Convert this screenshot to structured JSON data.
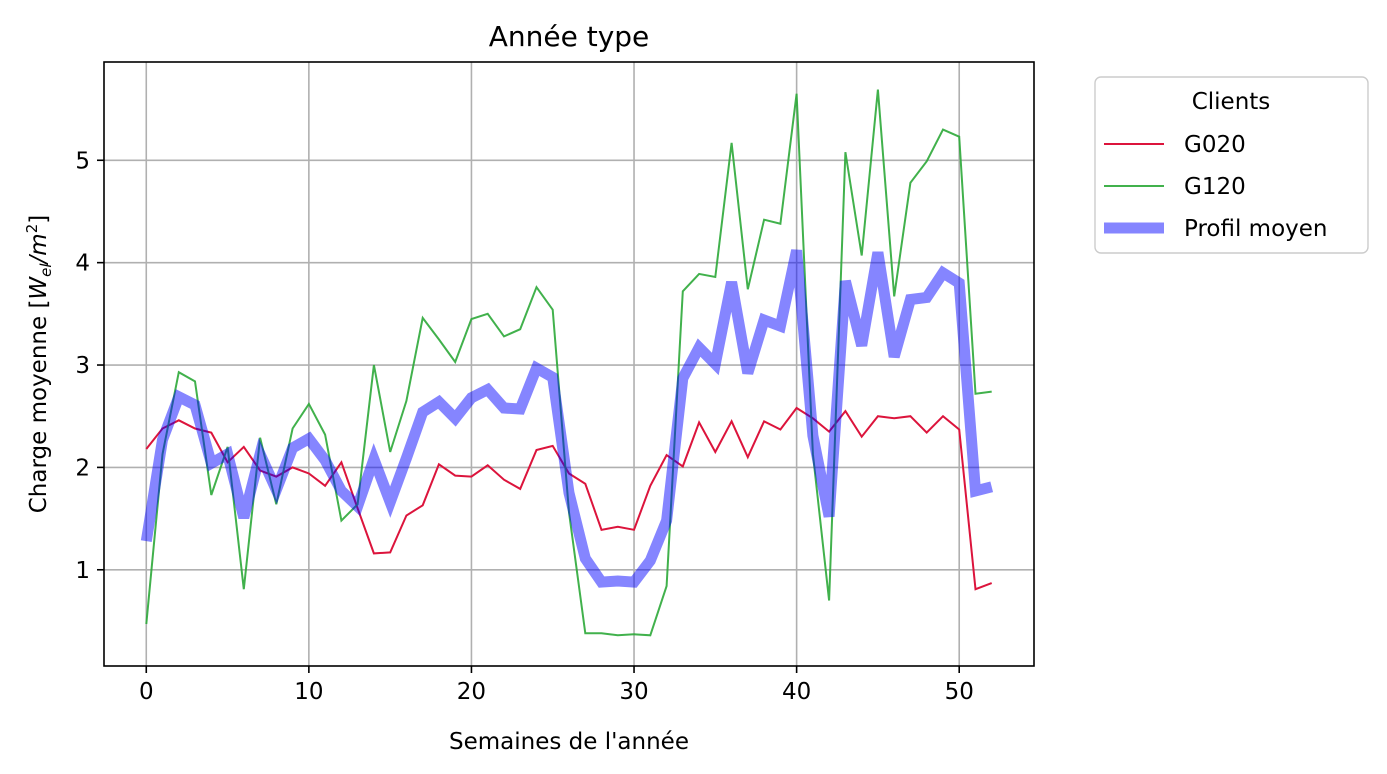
{
  "chart_data": {
    "type": "line",
    "title": "Année type",
    "xlabel": "Semaines de l'année",
    "ylabel_main": "Charge moyenne [",
    "ylabel_var": "W",
    "ylabel_sub": "el",
    "ylabel_slash": "/",
    "ylabel_m": "m",
    "ylabel_sup": "2",
    "ylabel_end": "]",
    "xlim": [
      -2.6,
      54.6
    ],
    "ylim": [
      0.06,
      5.96
    ],
    "xticks": [
      0,
      10,
      20,
      30,
      40,
      50
    ],
    "yticks": [
      1,
      2,
      3,
      4,
      5
    ],
    "grid": true,
    "legend_title": "Clients",
    "legend_position": "outside-top-right",
    "series": [
      {
        "name": "G020",
        "color": "#dc143c",
        "width": 2,
        "opacity": 1,
        "x": [
          0,
          1,
          2,
          3,
          4,
          5,
          6,
          7,
          8,
          9,
          10,
          11,
          12,
          13,
          14,
          15,
          16,
          17,
          18,
          19,
          20,
          21,
          22,
          23,
          24,
          25,
          26,
          27,
          28,
          29,
          30,
          31,
          32,
          33,
          34,
          35,
          36,
          37,
          38,
          39,
          40,
          41,
          42,
          43,
          44,
          45,
          46,
          47,
          48,
          49,
          50,
          51,
          52
        ],
        "y": [
          2.18,
          2.38,
          2.46,
          2.38,
          2.34,
          2.05,
          2.2,
          1.97,
          1.91,
          2.0,
          1.94,
          1.82,
          2.05,
          1.6,
          1.16,
          1.17,
          1.53,
          1.63,
          2.03,
          1.92,
          1.91,
          2.02,
          1.88,
          1.79,
          2.17,
          2.21,
          1.94,
          1.84,
          1.39,
          1.42,
          1.39,
          1.82,
          2.12,
          2.01,
          2.44,
          2.15,
          2.45,
          2.1,
          2.45,
          2.37,
          2.58,
          2.48,
          2.35,
          2.55,
          2.3,
          2.5,
          2.48,
          2.5,
          2.34,
          2.5,
          2.37,
          0.81,
          0.87
        ]
      },
      {
        "name": "G120",
        "color": "#2ca839",
        "width": 2,
        "opacity": 0.9,
        "x": [
          0,
          1,
          2,
          3,
          4,
          5,
          6,
          7,
          8,
          9,
          10,
          11,
          12,
          13,
          14,
          15,
          16,
          17,
          18,
          19,
          20,
          21,
          22,
          23,
          24,
          25,
          26,
          27,
          28,
          29,
          30,
          31,
          32,
          33,
          34,
          35,
          36,
          37,
          38,
          39,
          40,
          41,
          42,
          43,
          44,
          45,
          46,
          47,
          48,
          49,
          50,
          51,
          52
        ],
        "y": [
          0.47,
          2.13,
          2.93,
          2.84,
          1.73,
          2.2,
          0.81,
          2.29,
          1.64,
          2.38,
          2.62,
          2.32,
          1.48,
          1.64,
          3.0,
          2.15,
          2.65,
          3.46,
          3.25,
          3.03,
          3.45,
          3.5,
          3.28,
          3.35,
          3.76,
          3.54,
          1.56,
          0.38,
          0.38,
          0.36,
          0.37,
          0.36,
          0.84,
          3.72,
          3.89,
          3.86,
          5.17,
          3.74,
          4.42,
          4.38,
          5.65,
          2.13,
          0.7,
          5.08,
          4.07,
          5.69,
          3.67,
          4.78,
          4.99,
          5.3,
          5.23,
          2.72,
          2.74
        ]
      },
      {
        "name": "Profil moyen",
        "color": "#0000ff",
        "width": 11,
        "opacity": 0.48,
        "x": [
          0,
          1,
          2,
          3,
          4,
          5,
          6,
          7,
          8,
          9,
          10,
          11,
          12,
          13,
          14,
          15,
          16,
          17,
          18,
          19,
          20,
          21,
          22,
          23,
          24,
          25,
          26,
          27,
          28,
          29,
          30,
          31,
          32,
          33,
          34,
          35,
          36,
          37,
          38,
          39,
          40,
          41,
          42,
          43,
          44,
          45,
          46,
          47,
          48,
          49,
          50,
          51,
          52
        ],
        "y": [
          1.28,
          2.27,
          2.69,
          2.61,
          2.04,
          2.13,
          1.51,
          2.13,
          1.78,
          2.19,
          2.28,
          2.07,
          1.77,
          1.62,
          2.08,
          1.66,
          2.09,
          2.54,
          2.64,
          2.48,
          2.68,
          2.76,
          2.58,
          2.57,
          2.97,
          2.88,
          1.75,
          1.11,
          0.88,
          0.89,
          0.88,
          1.09,
          1.48,
          2.87,
          3.17,
          3.01,
          3.81,
          2.92,
          3.44,
          3.38,
          4.12,
          2.31,
          1.52,
          3.82,
          3.19,
          4.1,
          3.08,
          3.64,
          3.66,
          3.9,
          3.8,
          1.77,
          1.81
        ]
      }
    ]
  }
}
